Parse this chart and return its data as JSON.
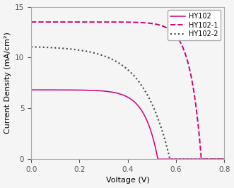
{
  "title": "",
  "xlabel": "Voltage (V)",
  "ylabel": "Current Density (mA/cm²)",
  "xlim": [
    0.0,
    0.8
  ],
  "ylim": [
    0.0,
    15.0
  ],
  "xticks": [
    0.0,
    0.2,
    0.4,
    0.6,
    0.8
  ],
  "yticks": [
    0,
    5,
    10,
    15
  ],
  "curves": [
    {
      "label": "HY102",
      "color": "#cc0077",
      "linestyle": "-",
      "linewidth": 1.1,
      "Jsc": 6.82,
      "Voc": 0.525,
      "n": 18.0
    },
    {
      "label": "HY102-1",
      "color": "#cc0077",
      "linestyle": "--",
      "linewidth": 1.4,
      "Jsc": 13.5,
      "Voc": 0.705,
      "n": 22.0
    },
    {
      "label": "HY102-2",
      "color": "#444444",
      "linestyle": ":",
      "linewidth": 1.5,
      "Jsc": 11.05,
      "Voc": 0.575,
      "n": 9.0
    }
  ],
  "legend_loc": "upper right",
  "bg_color": "#f5f5f5",
  "fig_bg": "#f5f5f5",
  "legend_fontsize": 7.0,
  "axis_fontsize": 8.0,
  "tick_fontsize": 7.5
}
